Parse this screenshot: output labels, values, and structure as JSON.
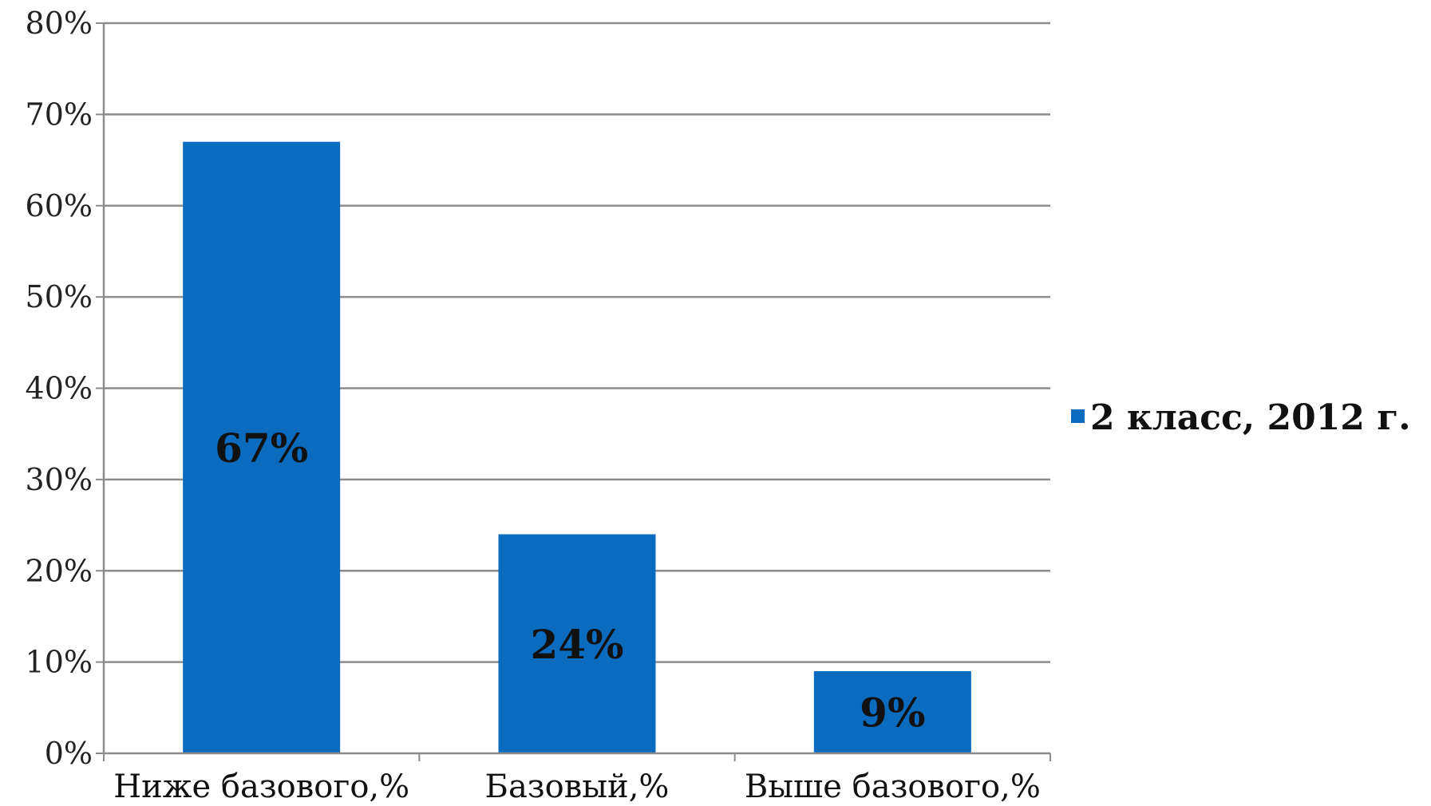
{
  "chart_data": {
    "type": "bar",
    "categories": [
      "Ниже базового,%",
      "Базовый,%",
      "Выше базового,%"
    ],
    "series": [
      {
        "name": "2 класс, 2012 г.",
        "values": [
          67,
          24,
          9
        ],
        "color": "#0a6bbf"
      }
    ],
    "data_labels": [
      "67%",
      "24%",
      "9%"
    ],
    "ylim": [
      0,
      80
    ],
    "y_ticks": [
      0,
      10,
      20,
      30,
      40,
      50,
      60,
      70,
      80
    ],
    "y_tick_labels": [
      "0%",
      "10%",
      "20%",
      "30%",
      "40%",
      "50%",
      "60%",
      "70%",
      "80%"
    ],
    "grid": true,
    "legend_position": "right",
    "colors": {
      "bar": "#0a6bbf",
      "grid": "#8c8c8c",
      "axis": "#8c8c8c"
    }
  }
}
